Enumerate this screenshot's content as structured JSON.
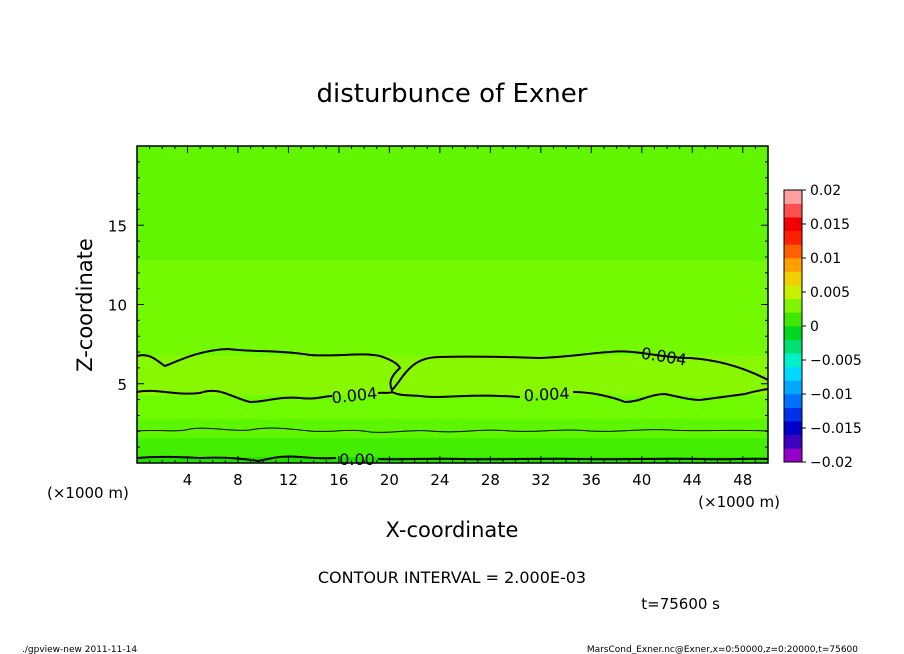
{
  "chart_data": {
    "type": "heatmap",
    "title": "disturbunce of Exner",
    "xlabel": "X-coordinate",
    "ylabel": "Z-coordinate",
    "x_unit": "(×1000 m)",
    "y_unit": "(×1000 m)",
    "xlim": [
      0,
      50
    ],
    "ylim": [
      0,
      20
    ],
    "x_ticks": [
      4,
      8,
      12,
      16,
      20,
      24,
      28,
      32,
      36,
      40,
      44,
      48
    ],
    "y_ticks": [
      5,
      10,
      15
    ],
    "colorbar": {
      "min": -0.02,
      "max": 0.02,
      "ticks": [
        0.02,
        0.015,
        0.01,
        0.005,
        0,
        -0.005,
        -0.01,
        -0.015,
        -0.02
      ],
      "tick_labels": [
        "0.02",
        "0.015",
        "0.01",
        "0.005",
        "0",
        "−0.005",
        "−0.01",
        "−0.015",
        "−0.02"
      ]
    },
    "contour_interval_text": "CONTOUR INTERVAL = 2.000E-03",
    "contour_labels": [
      "0.004",
      "0.004",
      "0.004",
      "0.00"
    ],
    "bands": [
      {
        "z_range": [
          0,
          0.4
        ],
        "level": 0.0,
        "color": "#22dd00"
      },
      {
        "z_range": [
          0.4,
          1.6
        ],
        "level": 0.001,
        "color": "#44ee00"
      },
      {
        "z_range": [
          1.6,
          2.8
        ],
        "level": 0.002,
        "color": "#5ef500"
      },
      {
        "z_range": [
          2.8,
          4.3
        ],
        "level": 0.003,
        "color": "#70fa00"
      },
      {
        "z_range": [
          4.3,
          6.8
        ],
        "level": 0.004,
        "color": "#88f800"
      },
      {
        "z_range": [
          6.8,
          12.8
        ],
        "level": 0.003,
        "color": "#74fa00"
      },
      {
        "z_range": [
          12.8,
          20
        ],
        "level": 0.002,
        "color": "#62f500"
      }
    ],
    "colors": {
      "palette": [
        "#9600c8",
        "#4000c0",
        "#0000c8",
        "#0030e8",
        "#0070ff",
        "#00a8ff",
        "#00d8ff",
        "#00f0c8",
        "#00e070",
        "#00d820",
        "#40e800",
        "#80f400",
        "#c8f000",
        "#f0d000",
        "#ffa000",
        "#ff6000",
        "#ff2000",
        "#f00000",
        "#ff5050",
        "#ffa0a0"
      ]
    }
  },
  "time_label": "t=75600  s",
  "footer_left": "./gpview-new  2011-11-14",
  "footer_right": "MarsCond_Exner.nc@Exner,x=0:50000,z=0:20000,t=75600"
}
